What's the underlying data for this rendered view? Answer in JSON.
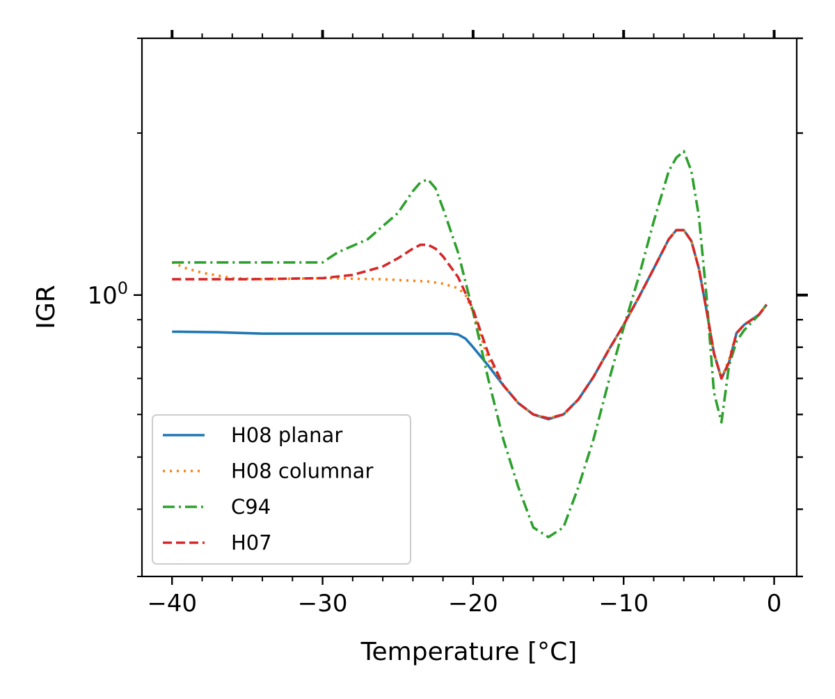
{
  "chart_data": {
    "type": "line",
    "title": "",
    "xlabel": "Temperature [°C]",
    "ylabel": "IGR",
    "xlim": [
      -42,
      1.5
    ],
    "ylim": [
      0.3,
      3.0
    ],
    "yscale": "log",
    "x_ticks": [
      {
        "value": -40,
        "label": "−40"
      },
      {
        "value": -30,
        "label": "−30"
      },
      {
        "value": -20,
        "label": "−20"
      },
      {
        "value": -10,
        "label": "−10"
      },
      {
        "value": 0,
        "label": "0"
      }
    ],
    "y_ticks": [
      {
        "value": 1.0,
        "label": "10",
        "exponent": "0"
      }
    ],
    "grid": false,
    "legend_position": "lower-left",
    "series": [
      {
        "name": "H08 planar",
        "color": "#1f77b4",
        "dash": "solid",
        "points": [
          [
            -40,
            0.855
          ],
          [
            -37,
            0.853
          ],
          [
            -34,
            0.848
          ],
          [
            -30,
            0.848
          ],
          [
            -25,
            0.848
          ],
          [
            -21.5,
            0.848
          ],
          [
            -21,
            0.845
          ],
          [
            -20.5,
            0.83
          ],
          [
            -20,
            0.8
          ],
          [
            -19,
            0.74
          ],
          [
            -18,
            0.68
          ],
          [
            -17,
            0.63
          ],
          [
            -16,
            0.6
          ],
          [
            -15,
            0.588
          ],
          [
            -14,
            0.6
          ],
          [
            -13,
            0.64
          ],
          [
            -12,
            0.705
          ],
          [
            -11,
            0.79
          ],
          [
            -10,
            0.88
          ],
          [
            -9,
            0.99
          ],
          [
            -8,
            1.12
          ],
          [
            -7,
            1.27
          ],
          [
            -6.5,
            1.32
          ],
          [
            -6,
            1.32
          ],
          [
            -5.5,
            1.26
          ],
          [
            -5,
            1.12
          ],
          [
            -4.5,
            0.94
          ],
          [
            -4,
            0.78
          ],
          [
            -3.5,
            0.7
          ],
          [
            -3,
            0.75
          ],
          [
            -2.5,
            0.85
          ],
          [
            -2,
            0.88
          ],
          [
            -1,
            0.92
          ],
          [
            -0.5,
            0.96
          ]
        ]
      },
      {
        "name": "H08 columnar",
        "color": "#ff7f0e",
        "dash": "dotted",
        "points": [
          [
            -40,
            1.15
          ],
          [
            -39,
            1.12
          ],
          [
            -38,
            1.1
          ],
          [
            -36,
            1.075
          ],
          [
            -34,
            1.07
          ],
          [
            -30,
            1.075
          ],
          [
            -26,
            1.07
          ],
          [
            -23,
            1.06
          ],
          [
            -22,
            1.05
          ],
          [
            -21,
            1.03
          ],
          [
            -20.5,
            1.0
          ],
          [
            -20,
            0.93
          ],
          [
            -19,
            0.76
          ],
          [
            -18,
            0.68
          ],
          [
            -17,
            0.63
          ],
          [
            -16,
            0.6
          ],
          [
            -15,
            0.59
          ],
          [
            -14,
            0.6
          ],
          [
            -13,
            0.64
          ],
          [
            -12,
            0.705
          ],
          [
            -11,
            0.79
          ],
          [
            -10,
            0.88
          ],
          [
            -9,
            0.99
          ],
          [
            -8,
            1.12
          ],
          [
            -7,
            1.27
          ],
          [
            -6.5,
            1.32
          ],
          [
            -6,
            1.32
          ],
          [
            -5.5,
            1.26
          ],
          [
            -5,
            1.12
          ],
          [
            -4.5,
            0.94
          ],
          [
            -4,
            0.78
          ],
          [
            -3.5,
            0.7
          ],
          [
            -3,
            0.76
          ],
          [
            -2.5,
            0.85
          ],
          [
            -2,
            0.88
          ],
          [
            -1,
            0.92
          ],
          [
            -0.5,
            0.96
          ]
        ]
      },
      {
        "name": "C94",
        "color": "#2ca02c",
        "dash": "dashdot",
        "points": [
          [
            -40,
            1.15
          ],
          [
            -35,
            1.15
          ],
          [
            -30,
            1.15
          ],
          [
            -29,
            1.2
          ],
          [
            -27,
            1.27
          ],
          [
            -25,
            1.42
          ],
          [
            -24,
            1.56
          ],
          [
            -23.5,
            1.62
          ],
          [
            -23,
            1.64
          ],
          [
            -22.5,
            1.58
          ],
          [
            -22,
            1.45
          ],
          [
            -21,
            1.2
          ],
          [
            -20,
            0.93
          ],
          [
            -19,
            0.7
          ],
          [
            -18,
            0.54
          ],
          [
            -17,
            0.44
          ],
          [
            -16,
            0.37
          ],
          [
            -15,
            0.355
          ],
          [
            -14,
            0.37
          ],
          [
            -13,
            0.44
          ],
          [
            -12,
            0.54
          ],
          [
            -11,
            0.69
          ],
          [
            -10,
            0.87
          ],
          [
            -9,
            1.08
          ],
          [
            -8,
            1.37
          ],
          [
            -7,
            1.7
          ],
          [
            -6.5,
            1.8
          ],
          [
            -6,
            1.85
          ],
          [
            -5.5,
            1.7
          ],
          [
            -5,
            1.4
          ],
          [
            -4.5,
            1.0
          ],
          [
            -4,
            0.66
          ],
          [
            -3.5,
            0.58
          ],
          [
            -3,
            0.74
          ],
          [
            -2.5,
            0.82
          ],
          [
            -2,
            0.86
          ],
          [
            -1,
            0.92
          ],
          [
            -0.5,
            0.96
          ]
        ]
      },
      {
        "name": "H07",
        "color": "#d62728",
        "dash": "dashed",
        "points": [
          [
            -40,
            1.07
          ],
          [
            -35,
            1.07
          ],
          [
            -30,
            1.075
          ],
          [
            -28,
            1.09
          ],
          [
            -26,
            1.13
          ],
          [
            -25,
            1.17
          ],
          [
            -24,
            1.22
          ],
          [
            -23.5,
            1.24
          ],
          [
            -23,
            1.24
          ],
          [
            -22.5,
            1.22
          ],
          [
            -22,
            1.18
          ],
          [
            -21,
            1.08
          ],
          [
            -20,
            0.94
          ],
          [
            -19,
            0.78
          ],
          [
            -18,
            0.68
          ],
          [
            -17,
            0.63
          ],
          [
            -16,
            0.6
          ],
          [
            -15,
            0.59
          ],
          [
            -14,
            0.6
          ],
          [
            -13,
            0.64
          ],
          [
            -12,
            0.705
          ],
          [
            -11,
            0.79
          ],
          [
            -10,
            0.88
          ],
          [
            -9,
            0.99
          ],
          [
            -8,
            1.12
          ],
          [
            -7,
            1.27
          ],
          [
            -6.5,
            1.32
          ],
          [
            -6,
            1.32
          ],
          [
            -5.5,
            1.26
          ],
          [
            -5,
            1.12
          ],
          [
            -4.5,
            0.94
          ],
          [
            -4,
            0.78
          ],
          [
            -3.5,
            0.7
          ],
          [
            -3,
            0.75
          ],
          [
            -2.5,
            0.85
          ],
          [
            -2,
            0.88
          ],
          [
            -1,
            0.92
          ],
          [
            -0.5,
            0.96
          ]
        ]
      }
    ]
  }
}
